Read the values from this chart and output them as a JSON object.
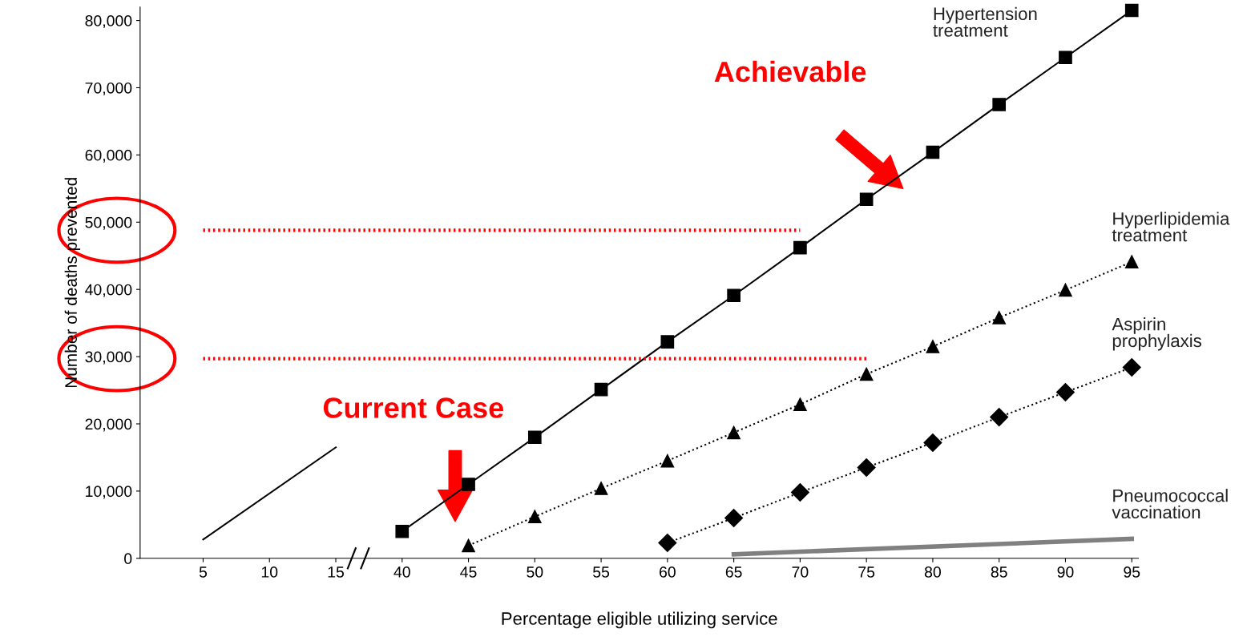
{
  "chart_data": {
    "type": "line",
    "xlabel": "Percentage eligible utilizing service",
    "ylabel": "Number of deaths prevented",
    "categories": [
      "5",
      "10",
      "15",
      "40",
      "45",
      "50",
      "55",
      "60",
      "65",
      "70",
      "75",
      "80",
      "85",
      "90",
      "95"
    ],
    "ylim": [
      0,
      82000
    ],
    "yticks": [
      {
        "value": 0,
        "label": "0"
      },
      {
        "value": 10000,
        "label": "10,000"
      },
      {
        "value": 20000,
        "label": "20,000"
      },
      {
        "value": 30000,
        "label": "30,000"
      },
      {
        "value": 40000,
        "label": "40,000"
      },
      {
        "value": 50000,
        "label": "50,000"
      },
      {
        "value": 60000,
        "label": "60,000"
      },
      {
        "value": 70000,
        "label": "70,000"
      },
      {
        "value": 80000,
        "label": "80,000"
      }
    ],
    "grid": false,
    "legend": false,
    "series": [
      {
        "color": "#000000",
        "marker": "none",
        "line_style": "solid",
        "x": [
          "5",
          "15"
        ],
        "values": [
          2800,
          16500
        ]
      },
      {
        "name": "Hypertension\ntreatment",
        "color": "#000000",
        "marker": "square",
        "line_style": "solid",
        "x": [
          "40",
          "45",
          "50",
          "55",
          "60",
          "65",
          "70",
          "75",
          "80",
          "85",
          "90",
          "95"
        ],
        "values": [
          4000,
          11000,
          18000,
          25100,
          32200,
          39100,
          46200,
          53400,
          60400,
          67500,
          74500,
          81500
        ]
      },
      {
        "name": "Hyperlipidemia\ntreatment",
        "color": "#000000",
        "marker": "triangle",
        "line_style": "dotted",
        "x": [
          "45",
          "50",
          "55",
          "60",
          "65",
          "70",
          "75",
          "80",
          "85",
          "90",
          "95"
        ],
        "values": [
          1900,
          6200,
          10400,
          14500,
          18700,
          22900,
          27400,
          31500,
          35800,
          39900,
          44100
        ]
      },
      {
        "name": "Aspirin\nprophylaxis",
        "color": "#000000",
        "marker": "diamond",
        "line_style": "dotted",
        "x": [
          "60",
          "65",
          "70",
          "75",
          "80",
          "85",
          "90",
          "95"
        ],
        "values": [
          2300,
          6000,
          9800,
          13500,
          17200,
          21000,
          24700,
          28400
        ]
      },
      {
        "name": "Pneumococcal\nvaccination",
        "color": "#808080",
        "marker": "none",
        "line_style": "solid",
        "x": [
          "65",
          "95"
        ],
        "values": [
          600,
          2900
        ]
      },
      {
        "color": "#ff0000",
        "marker": "none",
        "line_style": "dotted",
        "x": [
          "5",
          "70"
        ],
        "values": [
          48800,
          48800
        ]
      },
      {
        "color": "#ff0000",
        "marker": "none",
        "line_style": "dotted",
        "x": [
          "5",
          "75"
        ],
        "values": [
          29700,
          29700
        ]
      }
    ],
    "annotations": [
      "Achievable",
      "Current Case"
    ]
  }
}
